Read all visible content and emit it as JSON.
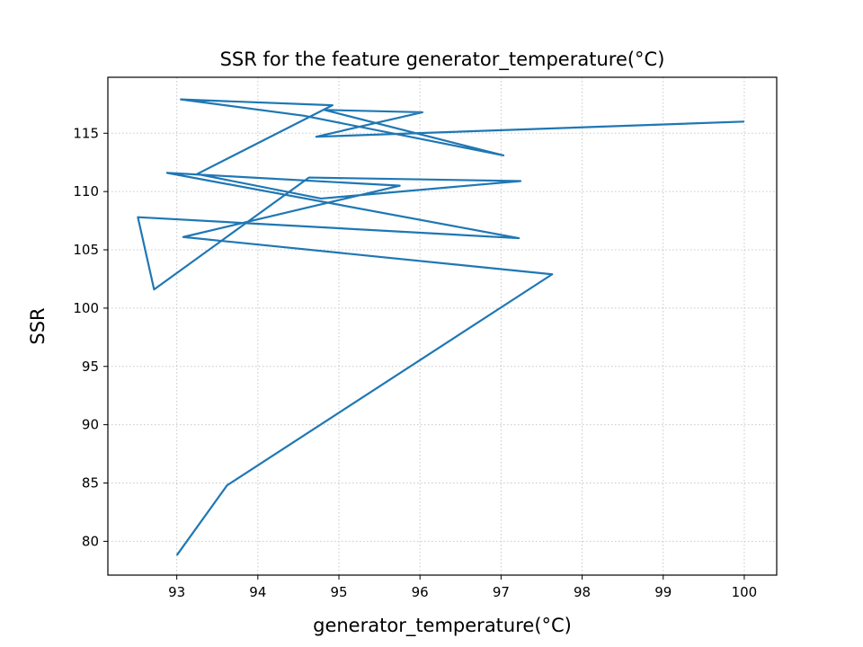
{
  "chart_data": {
    "type": "line",
    "title": "SSR for the feature generator_temperature(°C)",
    "xlabel": "generator_temperature(°C)",
    "ylabel": "SSR",
    "xlim": [
      92.15,
      100.4
    ],
    "ylim": [
      77.1,
      119.8
    ],
    "xticks": [
      93,
      94,
      95,
      96,
      97,
      98,
      99,
      100
    ],
    "yticks": [
      80,
      85,
      90,
      95,
      100,
      105,
      110,
      115
    ],
    "grid": true,
    "grid_style": "dotted",
    "line_color": "#1f77b4",
    "series": [
      {
        "x": [
          93.0,
          93.62,
          97.63,
          93.08,
          95.75,
          92.88,
          97.22,
          92.52,
          92.72,
          94.63,
          97.24,
          94.78,
          93.25,
          94.92,
          93.05,
          94.57,
          97.03,
          94.82,
          96.03,
          94.72,
          100.0
        ],
        "y": [
          78.8,
          84.8,
          102.9,
          106.1,
          110.5,
          111.6,
          106.0,
          107.8,
          101.6,
          111.2,
          110.9,
          109.4,
          111.5,
          117.4,
          117.9,
          116.5,
          113.1,
          117.0,
          116.8,
          114.7,
          116.0
        ]
      }
    ]
  }
}
